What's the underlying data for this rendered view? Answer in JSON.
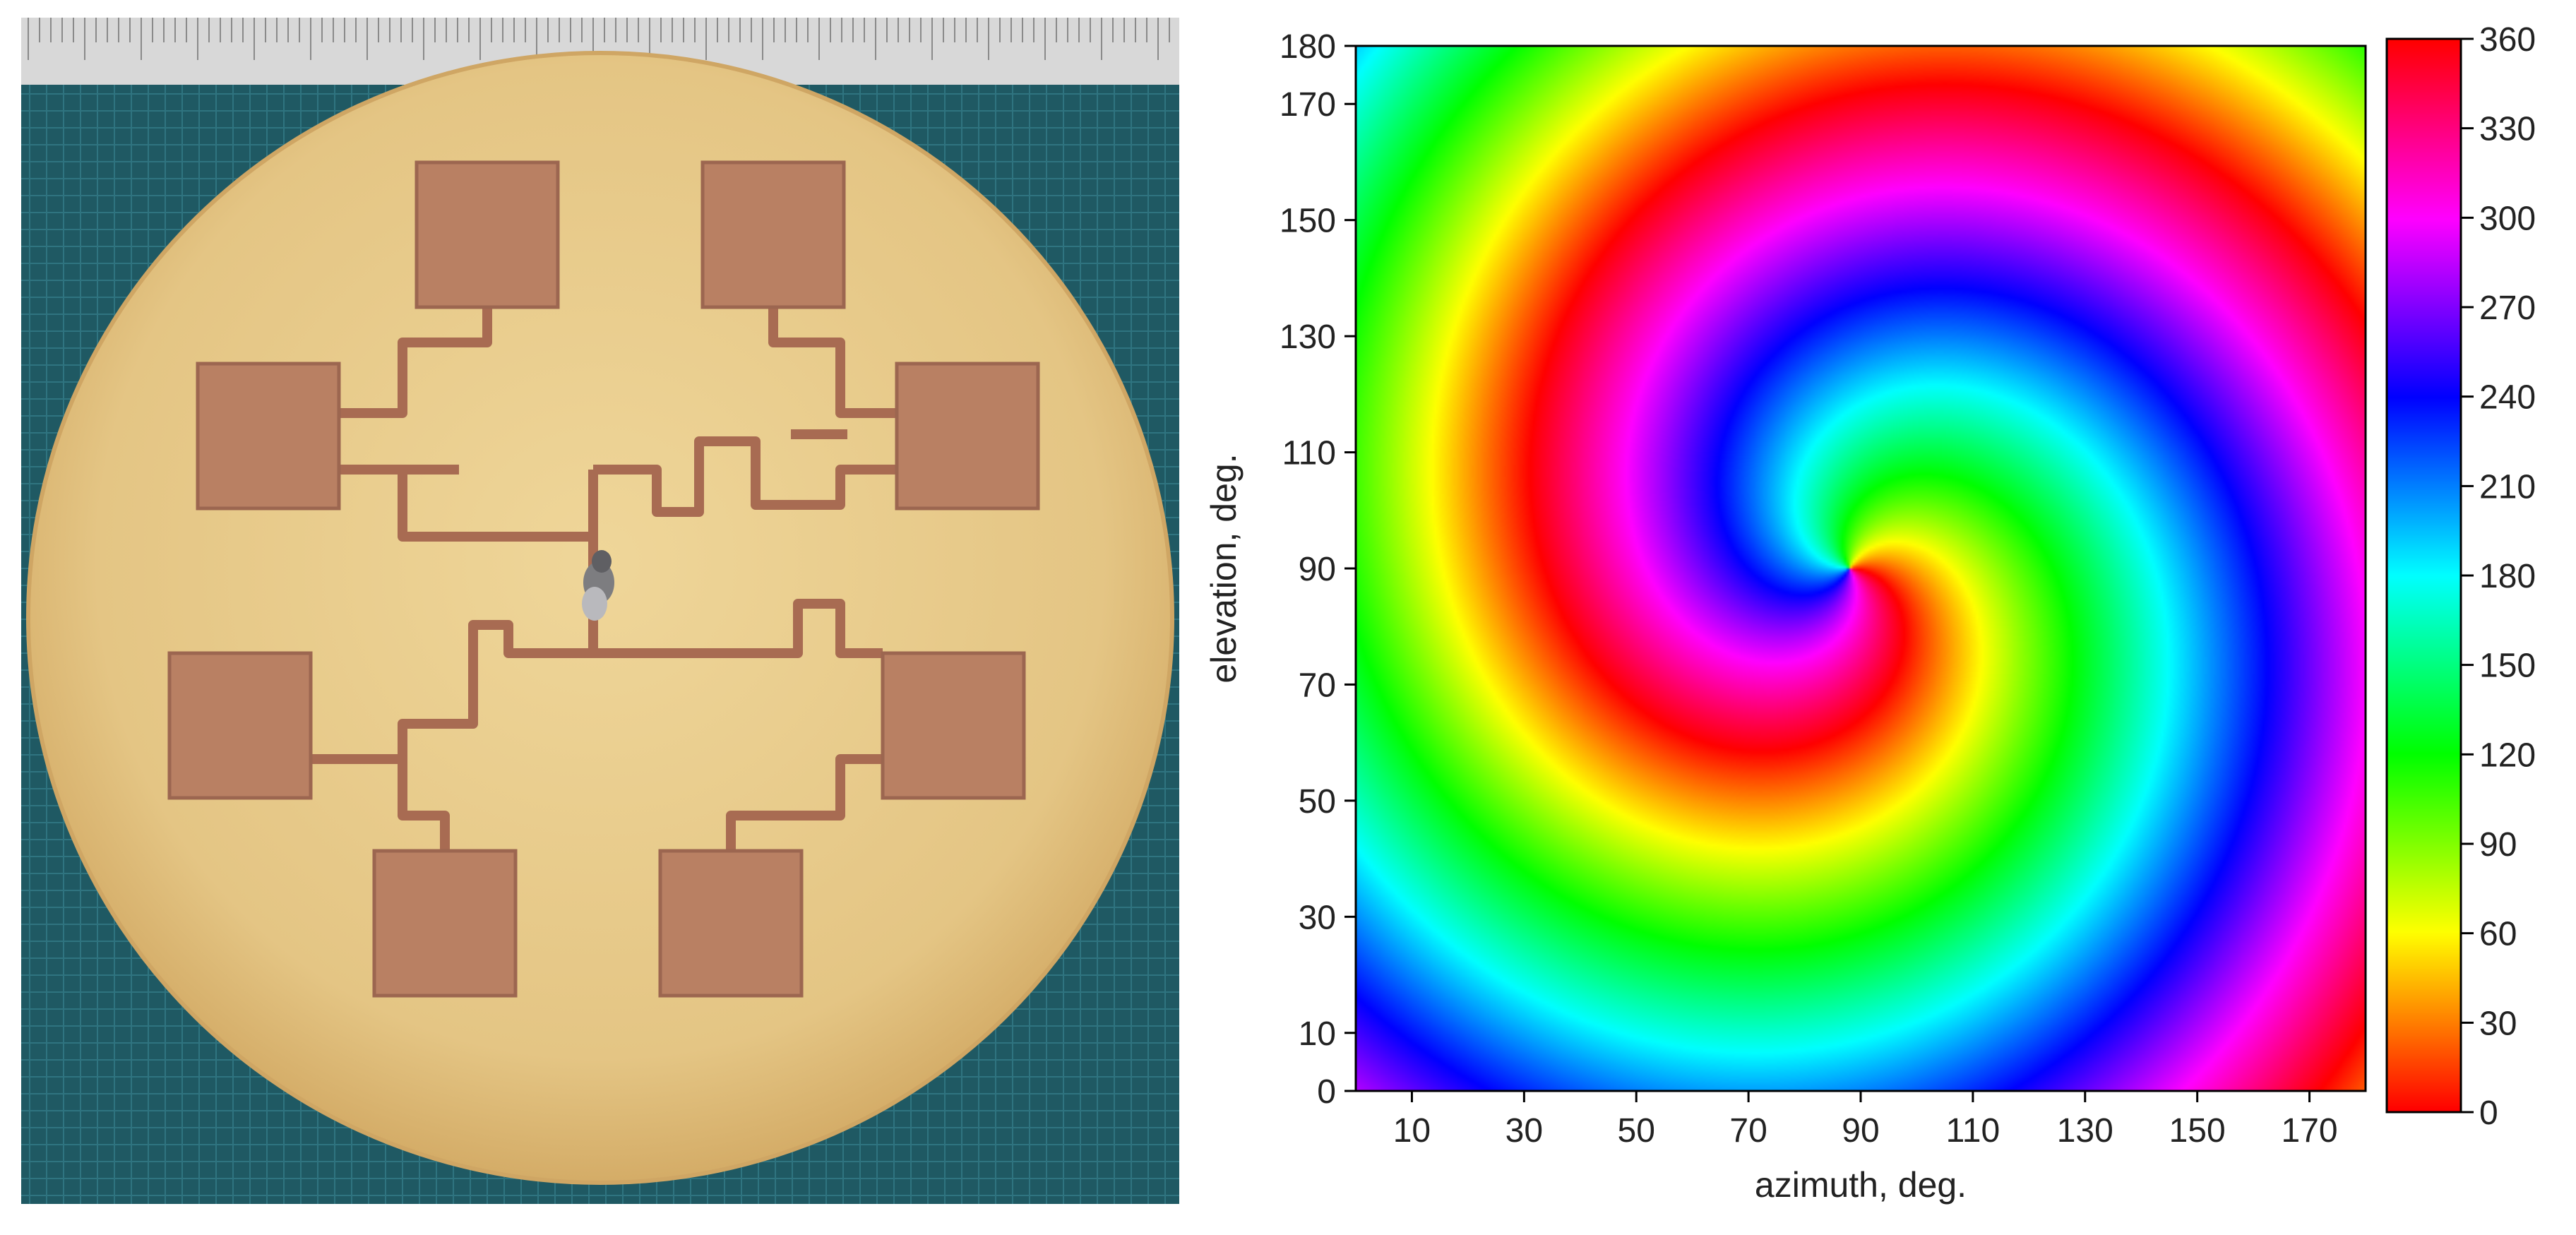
{
  "photo": {
    "description_icon": "patch-antenna-array-photo",
    "colors": {
      "board": "#e7c98a",
      "board_edge": "#d7b06c",
      "copper": "#b98063",
      "copper_dark": "#9c6650",
      "mat": "#1f5963",
      "ruler": "#d9d9d9"
    }
  },
  "chart_data": {
    "type": "heatmap",
    "title": "",
    "xlabel": "azimuth, deg.",
    "ylabel": "elevation, deg.",
    "xlim": [
      0,
      180
    ],
    "ylim": [
      0,
      180
    ],
    "x_ticks": [
      10,
      30,
      50,
      70,
      90,
      110,
      130,
      150,
      170
    ],
    "y_ticks": [
      0,
      10,
      30,
      50,
      70,
      90,
      110,
      130,
      150,
      170,
      180
    ],
    "colorbar": {
      "min": 0,
      "max": 360,
      "ticks": [
        0,
        30,
        60,
        90,
        120,
        150,
        180,
        210,
        240,
        270,
        300,
        330,
        360
      ],
      "colormap": "hsv"
    },
    "pattern": "spiral phase (vortex) centered near azimuth 88, elevation 90; phase wraps 0-360 with about 5 turns toward the edges",
    "vortex_center": {
      "azimuth": 88,
      "elevation": 90
    },
    "grid": false,
    "legend": "colorbar-right"
  }
}
